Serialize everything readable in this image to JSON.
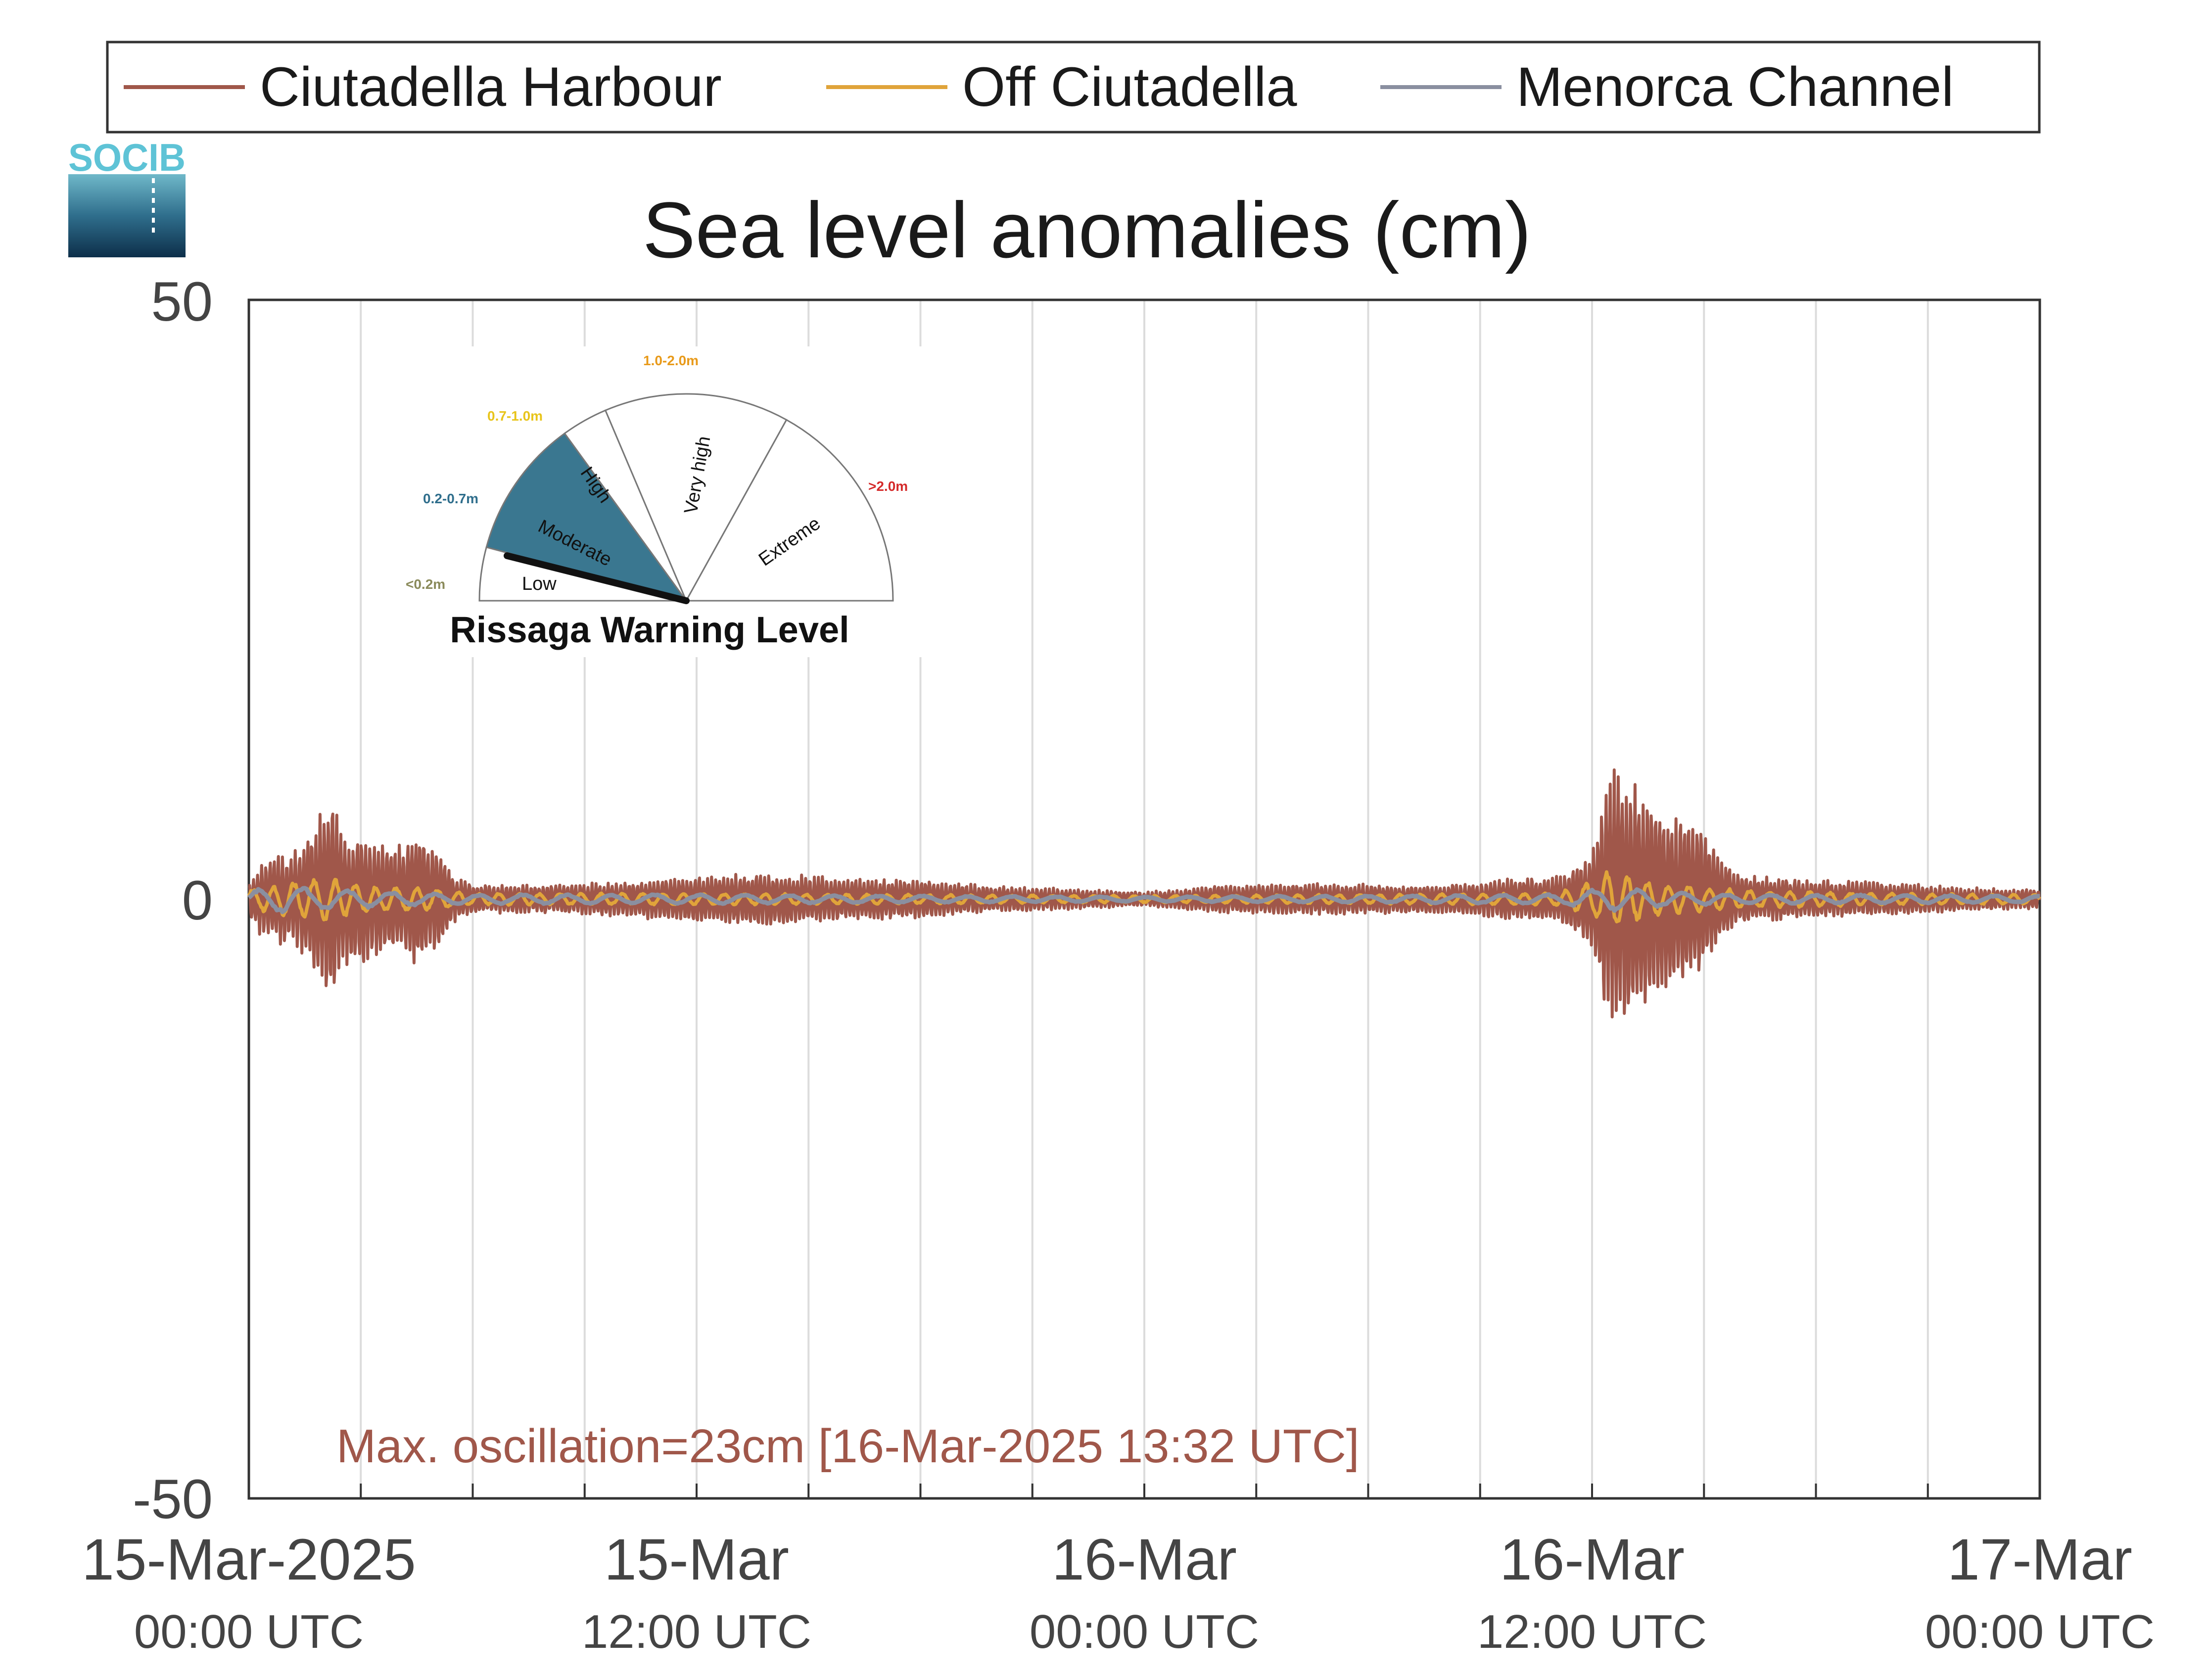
{
  "logo": {
    "text": "SOCIB"
  },
  "colors": {
    "ciutadella_harbour": "#a0574a",
    "off_ciutadella": "#e0a43a",
    "menorca_channel": "#8a8fa0",
    "gauge_moderate": "#3a7790"
  },
  "legend": {
    "items": [
      {
        "label": "Ciutadella Harbour",
        "color": "#a0574a"
      },
      {
        "label": "Off Ciutadella",
        "color": "#e0a43a"
      },
      {
        "label": "Menorca Channel",
        "color": "#8a8fa0"
      }
    ]
  },
  "gauge": {
    "title": "Rissaga Warning Level",
    "current_level": "Moderate",
    "segments": [
      {
        "label": "Low",
        "range": "<0.2m",
        "range_color": "#8a8a5a"
      },
      {
        "label": "Moderate",
        "range": "0.2-0.7m",
        "range_color": "#2f6e8c"
      },
      {
        "label": "High",
        "range": "0.7-1.0m",
        "range_color": "#e8c41a"
      },
      {
        "label": "Very high",
        "range": "1.0-2.0m",
        "range_color": "#e89a1a"
      },
      {
        "label": "Extreme",
        "range": ">2.0m",
        "range_color": "#d42a2a"
      }
    ]
  },
  "annotation": {
    "text": "Max. oscillation=23cm [16-Mar-2025 13:32 UTC]",
    "color": "#a0574a"
  },
  "chart_data": {
    "type": "line",
    "title": "Sea level anomalies (cm)",
    "xlabel": "",
    "ylabel": "",
    "x_range_hours": [
      0,
      48
    ],
    "ylim": [
      -50,
      50
    ],
    "grid": "vertical lines every 3 hours",
    "legend_position": "top",
    "y_ticks": [
      "50",
      "0",
      "-50"
    ],
    "x_ticks": [
      {
        "hour": 0,
        "line1": "15-Mar-2025",
        "line2": "00:00 UTC"
      },
      {
        "hour": 12,
        "line1": "15-Mar",
        "line2": "12:00 UTC"
      },
      {
        "hour": 24,
        "line1": "16-Mar",
        "line2": "00:00 UTC"
      },
      {
        "hour": 36,
        "line1": "16-Mar",
        "line2": "12:00 UTC"
      },
      {
        "hour": 48,
        "line1": "17-Mar",
        "line2": "00:00 UTC"
      }
    ],
    "series": [
      {
        "name": "Ciutadella Harbour",
        "note": "envelope of high-frequency oscillation (cm): [hour, amplitude]",
        "envelope": [
          [
            0,
            1.5
          ],
          [
            0.3,
            3
          ],
          [
            1,
            4
          ],
          [
            1.6,
            5
          ],
          [
            2,
            8
          ],
          [
            2.2,
            9.5
          ],
          [
            2.5,
            5.5
          ],
          [
            3,
            6
          ],
          [
            3.5,
            5
          ],
          [
            4,
            4.5
          ],
          [
            4.5,
            6
          ],
          [
            5,
            4.5
          ],
          [
            5.5,
            2
          ],
          [
            6,
            1.2
          ],
          [
            8,
            1.2
          ],
          [
            10,
            1.5
          ],
          [
            12,
            2
          ],
          [
            14,
            2.2
          ],
          [
            16,
            1.8
          ],
          [
            18,
            1.6
          ],
          [
            20,
            1.1
          ],
          [
            22,
            0.9
          ],
          [
            24,
            0.6
          ],
          [
            26,
            1.2
          ],
          [
            28,
            1.3
          ],
          [
            30,
            1.3
          ],
          [
            32,
            1.2
          ],
          [
            34,
            1.8
          ],
          [
            35,
            1.8
          ],
          [
            36,
            4
          ],
          [
            36.3,
            9
          ],
          [
            36.6,
            11
          ],
          [
            37,
            10.5
          ],
          [
            37.5,
            9
          ],
          [
            38,
            8
          ],
          [
            38.5,
            7
          ],
          [
            39,
            6
          ],
          [
            39.5,
            3.5
          ],
          [
            40,
            2
          ],
          [
            42,
            1.6
          ],
          [
            44,
            1.4
          ],
          [
            46,
            1
          ],
          [
            48,
            0.8
          ]
        ]
      },
      {
        "name": "Off Ciutadella",
        "note": "envelope (cm): [hour, amplitude]",
        "envelope": [
          [
            0,
            0.8
          ],
          [
            1,
            1.5
          ],
          [
            2,
            2
          ],
          [
            3,
            1.2
          ],
          [
            5,
            0.9
          ],
          [
            6,
            0.5
          ],
          [
            12,
            0.5
          ],
          [
            24,
            0.3
          ],
          [
            35,
            0.5
          ],
          [
            36,
            1.5
          ],
          [
            36.5,
            2.5
          ],
          [
            37,
            2
          ],
          [
            38,
            1.3
          ],
          [
            40,
            0.8
          ],
          [
            44,
            0.5
          ],
          [
            48,
            0.4
          ]
        ]
      },
      {
        "name": "Menorca Channel",
        "note": "envelope (cm): [hour, amplitude]",
        "envelope": [
          [
            0,
            0.7
          ],
          [
            1,
            1.2
          ],
          [
            2,
            0.9
          ],
          [
            4,
            0.6
          ],
          [
            6,
            0.4
          ],
          [
            12,
            0.4
          ],
          [
            24,
            0.2
          ],
          [
            35,
            0.4
          ],
          [
            36.5,
            1
          ],
          [
            38,
            0.6
          ],
          [
            40,
            0.4
          ],
          [
            48,
            0.3
          ]
        ]
      }
    ]
  }
}
